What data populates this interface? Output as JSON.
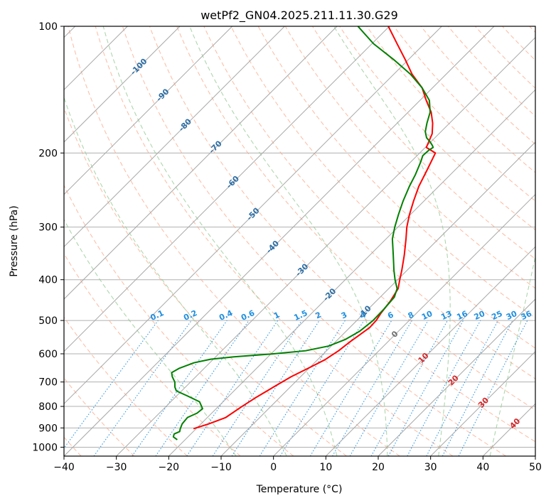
{
  "chart_data": {
    "type": "line",
    "subtype": "skew-t log-p diagram",
    "title": "wetPf2_GN04.2025.211.11.30.G29",
    "xlabel": "Temperature (°C)",
    "ylabel": "Pressure (hPa)",
    "xlim": [
      -40,
      50
    ],
    "ylim": [
      1050,
      100
    ],
    "y_scale": "log",
    "x_ticks": [
      "−40",
      "−30",
      "−20",
      "−10",
      "0",
      "10",
      "20",
      "30",
      "40",
      "50"
    ],
    "y_ticks": [
      {
        "p": 100,
        "label": "100"
      },
      {
        "p": 200,
        "label": "200"
      },
      {
        "p": 300,
        "label": "300"
      },
      {
        "p": 400,
        "label": "400"
      },
      {
        "p": 500,
        "label": "500"
      },
      {
        "p": 600,
        "label": "600"
      },
      {
        "p": 700,
        "label": "700"
      },
      {
        "p": 800,
        "label": "800"
      },
      {
        "p": 900,
        "label": "900"
      },
      {
        "p": 1000,
        "label": "1000"
      }
    ],
    "grid": true,
    "isotherms": [
      -130,
      -120,
      -110,
      -100,
      -90,
      -80,
      -70,
      -60,
      -50,
      -40,
      -30,
      -20,
      -10,
      0,
      10,
      20,
      30,
      40,
      50
    ],
    "dry_adiabats_C": [
      -80,
      -70,
      -60,
      -50,
      -40,
      -30,
      -20,
      -10,
      0,
      10,
      20,
      30,
      40,
      50,
      60,
      70,
      80,
      90,
      100,
      110,
      120,
      130,
      140,
      150,
      160,
      170,
      180,
      190,
      200
    ],
    "moist_adiabats_C": [
      -10,
      0,
      10,
      20,
      30,
      40,
      50
    ],
    "mixing_ratios": [
      0.1,
      0.2,
      0.4,
      0.6,
      1,
      1.5,
      2,
      3,
      4,
      6,
      8,
      10,
      13,
      16,
      20,
      25,
      30,
      36
    ],
    "mixing_ratio_labels": [
      "0.1",
      "0.2",
      "0.4",
      "0.6",
      "1",
      "1.5",
      "2",
      "3",
      "4",
      "6",
      "8",
      "10",
      "13",
      "16",
      "20",
      "25",
      "30",
      "36"
    ],
    "isotherm_labels": [
      {
        "value": "-100",
        "p": 125
      },
      {
        "value": "-90",
        "p": 146
      },
      {
        "value": "-80",
        "p": 172
      },
      {
        "value": "-70",
        "p": 194
      },
      {
        "value": "-60",
        "p": 235
      },
      {
        "value": "-50",
        "p": 280
      },
      {
        "value": "-40",
        "p": 335
      },
      {
        "value": "-30",
        "p": 380
      },
      {
        "value": "-20",
        "p": 435
      },
      {
        "value": "-10",
        "p": 478
      }
    ],
    "warm_isotherm_labels": [
      {
        "value": "0",
        "p": 540,
        "color": "#707070"
      },
      {
        "value": "10",
        "p": 615,
        "color": "#d62728"
      },
      {
        "value": "20",
        "p": 695,
        "color": "#d62728"
      },
      {
        "value": "30",
        "p": 785,
        "color": "#d62728"
      },
      {
        "value": "40",
        "p": 880,
        "color": "#d62728"
      }
    ],
    "series": [
      {
        "name": "",
        "color": "#ff0000",
        "points": [
          [
            904,
            -20.5
          ],
          [
            880,
            -18.5
          ],
          [
            850,
            -16.5
          ],
          [
            800,
            -15.5
          ],
          [
            760,
            -14.5
          ],
          [
            720,
            -13.2
          ],
          [
            680,
            -11.8
          ],
          [
            650,
            -10.2
          ],
          [
            620,
            -8.6
          ],
          [
            590,
            -7.7
          ],
          [
            560,
            -7.2
          ],
          [
            540,
            -6.7
          ],
          [
            520,
            -6.2
          ],
          [
            500,
            -6.3
          ],
          [
            480,
            -6.8
          ],
          [
            450,
            -7.3
          ],
          [
            420,
            -8.2
          ],
          [
            400,
            -9.6
          ],
          [
            380,
            -11.0
          ],
          [
            350,
            -13.4
          ],
          [
            320,
            -16.2
          ],
          [
            300,
            -18.3
          ],
          [
            280,
            -20.2
          ],
          [
            260,
            -22.0
          ],
          [
            240,
            -23.8
          ],
          [
            220,
            -25.3
          ],
          [
            200,
            -27.0
          ],
          [
            194,
            -29.8
          ],
          [
            180,
            -31.3
          ],
          [
            170,
            -33.2
          ],
          [
            160,
            -35.6
          ],
          [
            150,
            -38.8
          ],
          [
            140,
            -42.0
          ],
          [
            130,
            -46.5
          ],
          [
            120,
            -50.6
          ],
          [
            110,
            -55.2
          ],
          [
            100,
            -60.2
          ]
        ]
      },
      {
        "name": "",
        "color": "#008000",
        "points": [
          [
            960,
            -21.5
          ],
          [
            945,
            -22.8
          ],
          [
            930,
            -23.2
          ],
          [
            918,
            -22.6
          ],
          [
            905,
            -23.0
          ],
          [
            880,
            -23.6
          ],
          [
            850,
            -23.8
          ],
          [
            830,
            -22.8
          ],
          [
            810,
            -22.6
          ],
          [
            780,
            -24.5
          ],
          [
            755,
            -28.0
          ],
          [
            735,
            -31.0
          ],
          [
            720,
            -32.0
          ],
          [
            700,
            -33.0
          ],
          [
            680,
            -34.5
          ],
          [
            665,
            -35.4
          ],
          [
            650,
            -34.8
          ],
          [
            630,
            -33.0
          ],
          [
            618,
            -30.5
          ],
          [
            610,
            -26.5
          ],
          [
            600,
            -19.5
          ],
          [
            590,
            -14.0
          ],
          [
            575,
            -10.5
          ],
          [
            555,
            -8.6
          ],
          [
            530,
            -7.4
          ],
          [
            500,
            -6.9
          ],
          [
            470,
            -7.0
          ],
          [
            440,
            -7.3
          ],
          [
            420,
            -8.4
          ],
          [
            400,
            -10.5
          ],
          [
            380,
            -12.5
          ],
          [
            350,
            -15.5
          ],
          [
            320,
            -18.8
          ],
          [
            300,
            -20.6
          ],
          [
            280,
            -22.3
          ],
          [
            260,
            -24.0
          ],
          [
            240,
            -25.6
          ],
          [
            225,
            -26.7
          ],
          [
            210,
            -28.1
          ],
          [
            203,
            -28.9
          ],
          [
            197,
            -28.8
          ],
          [
            194,
            -28.5
          ],
          [
            192,
            -29.0
          ],
          [
            188,
            -30.2
          ],
          [
            184,
            -31.6
          ],
          [
            178,
            -33.0
          ],
          [
            170,
            -34.3
          ],
          [
            160,
            -35.8
          ],
          [
            150,
            -38.2
          ],
          [
            140,
            -42.0
          ],
          [
            130,
            -46.8
          ],
          [
            120,
            -52.8
          ],
          [
            110,
            -59.7
          ],
          [
            100,
            -66.0
          ]
        ]
      }
    ]
  }
}
